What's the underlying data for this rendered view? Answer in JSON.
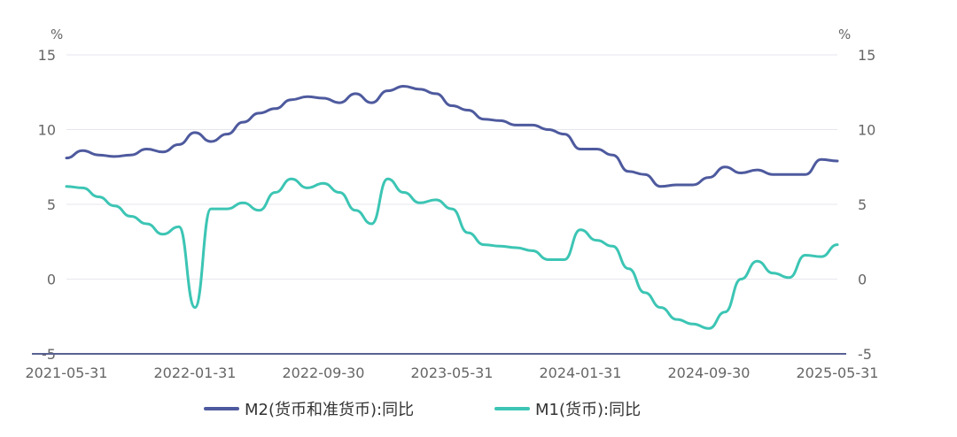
{
  "chart_data": {
    "type": "line",
    "left_unit": "%",
    "right_unit": "%",
    "ylim": [
      -5,
      15
    ],
    "y_ticks": [
      15,
      10,
      5,
      0,
      -5
    ],
    "x_ticks": [
      "2021-05-31",
      "2022-01-31",
      "2022-09-30",
      "2023-05-31",
      "2024-01-31",
      "2024-09-30",
      "2025-05-31"
    ],
    "x": [
      "2021-05-31",
      "2021-06-30",
      "2021-07-31",
      "2021-08-31",
      "2021-09-30",
      "2021-10-31",
      "2021-11-30",
      "2021-12-31",
      "2022-01-31",
      "2022-02-28",
      "2022-03-31",
      "2022-04-30",
      "2022-05-31",
      "2022-06-30",
      "2022-07-31",
      "2022-08-31",
      "2022-09-30",
      "2022-10-31",
      "2022-11-30",
      "2022-12-31",
      "2023-01-31",
      "2023-02-28",
      "2023-03-31",
      "2023-04-30",
      "2023-05-31",
      "2023-06-30",
      "2023-07-31",
      "2023-08-31",
      "2023-09-30",
      "2023-10-31",
      "2023-11-30",
      "2023-12-31",
      "2024-01-31",
      "2024-02-29",
      "2024-03-31",
      "2024-04-30",
      "2024-05-31",
      "2024-06-30",
      "2024-07-31",
      "2024-08-31",
      "2024-09-30",
      "2024-10-31",
      "2024-11-30",
      "2024-12-31",
      "2025-01-31",
      "2025-02-28",
      "2025-03-31",
      "2025-04-30",
      "2025-05-31"
    ],
    "series": [
      {
        "name": "M2(货币和准货币):同比",
        "color": "#4e5a9e",
        "values": [
          8.1,
          8.6,
          8.3,
          8.2,
          8.3,
          8.7,
          8.5,
          9.0,
          9.8,
          9.2,
          9.7,
          10.5,
          11.1,
          11.4,
          12.0,
          12.2,
          12.1,
          11.8,
          12.4,
          11.8,
          12.6,
          12.9,
          12.7,
          12.4,
          11.6,
          11.3,
          10.7,
          10.6,
          10.3,
          10.3,
          10.0,
          9.7,
          8.7,
          8.7,
          8.3,
          7.2,
          7.0,
          6.2,
          6.3,
          6.3,
          6.8,
          7.5,
          7.1,
          7.3,
          7.0,
          7.0,
          7.0,
          8.0,
          7.9
        ]
      },
      {
        "name": "M1(货币):同比",
        "color": "#3cc5b4",
        "values": [
          6.2,
          6.1,
          5.5,
          4.9,
          4.2,
          3.7,
          3.0,
          3.5,
          -1.9,
          4.7,
          4.7,
          5.1,
          4.6,
          5.8,
          6.7,
          6.1,
          6.4,
          5.8,
          4.6,
          3.7,
          6.7,
          5.8,
          5.1,
          5.3,
          4.7,
          3.1,
          2.3,
          2.2,
          2.1,
          1.9,
          1.3,
          1.3,
          3.3,
          2.6,
          2.2,
          0.7,
          -0.9,
          -1.9,
          -2.7,
          -3.0,
          -3.3,
          -2.2,
          0.0,
          1.2,
          0.4,
          0.1,
          1.6,
          1.5,
          2.3
        ]
      }
    ],
    "legend": "bottom-center",
    "grid": true
  }
}
